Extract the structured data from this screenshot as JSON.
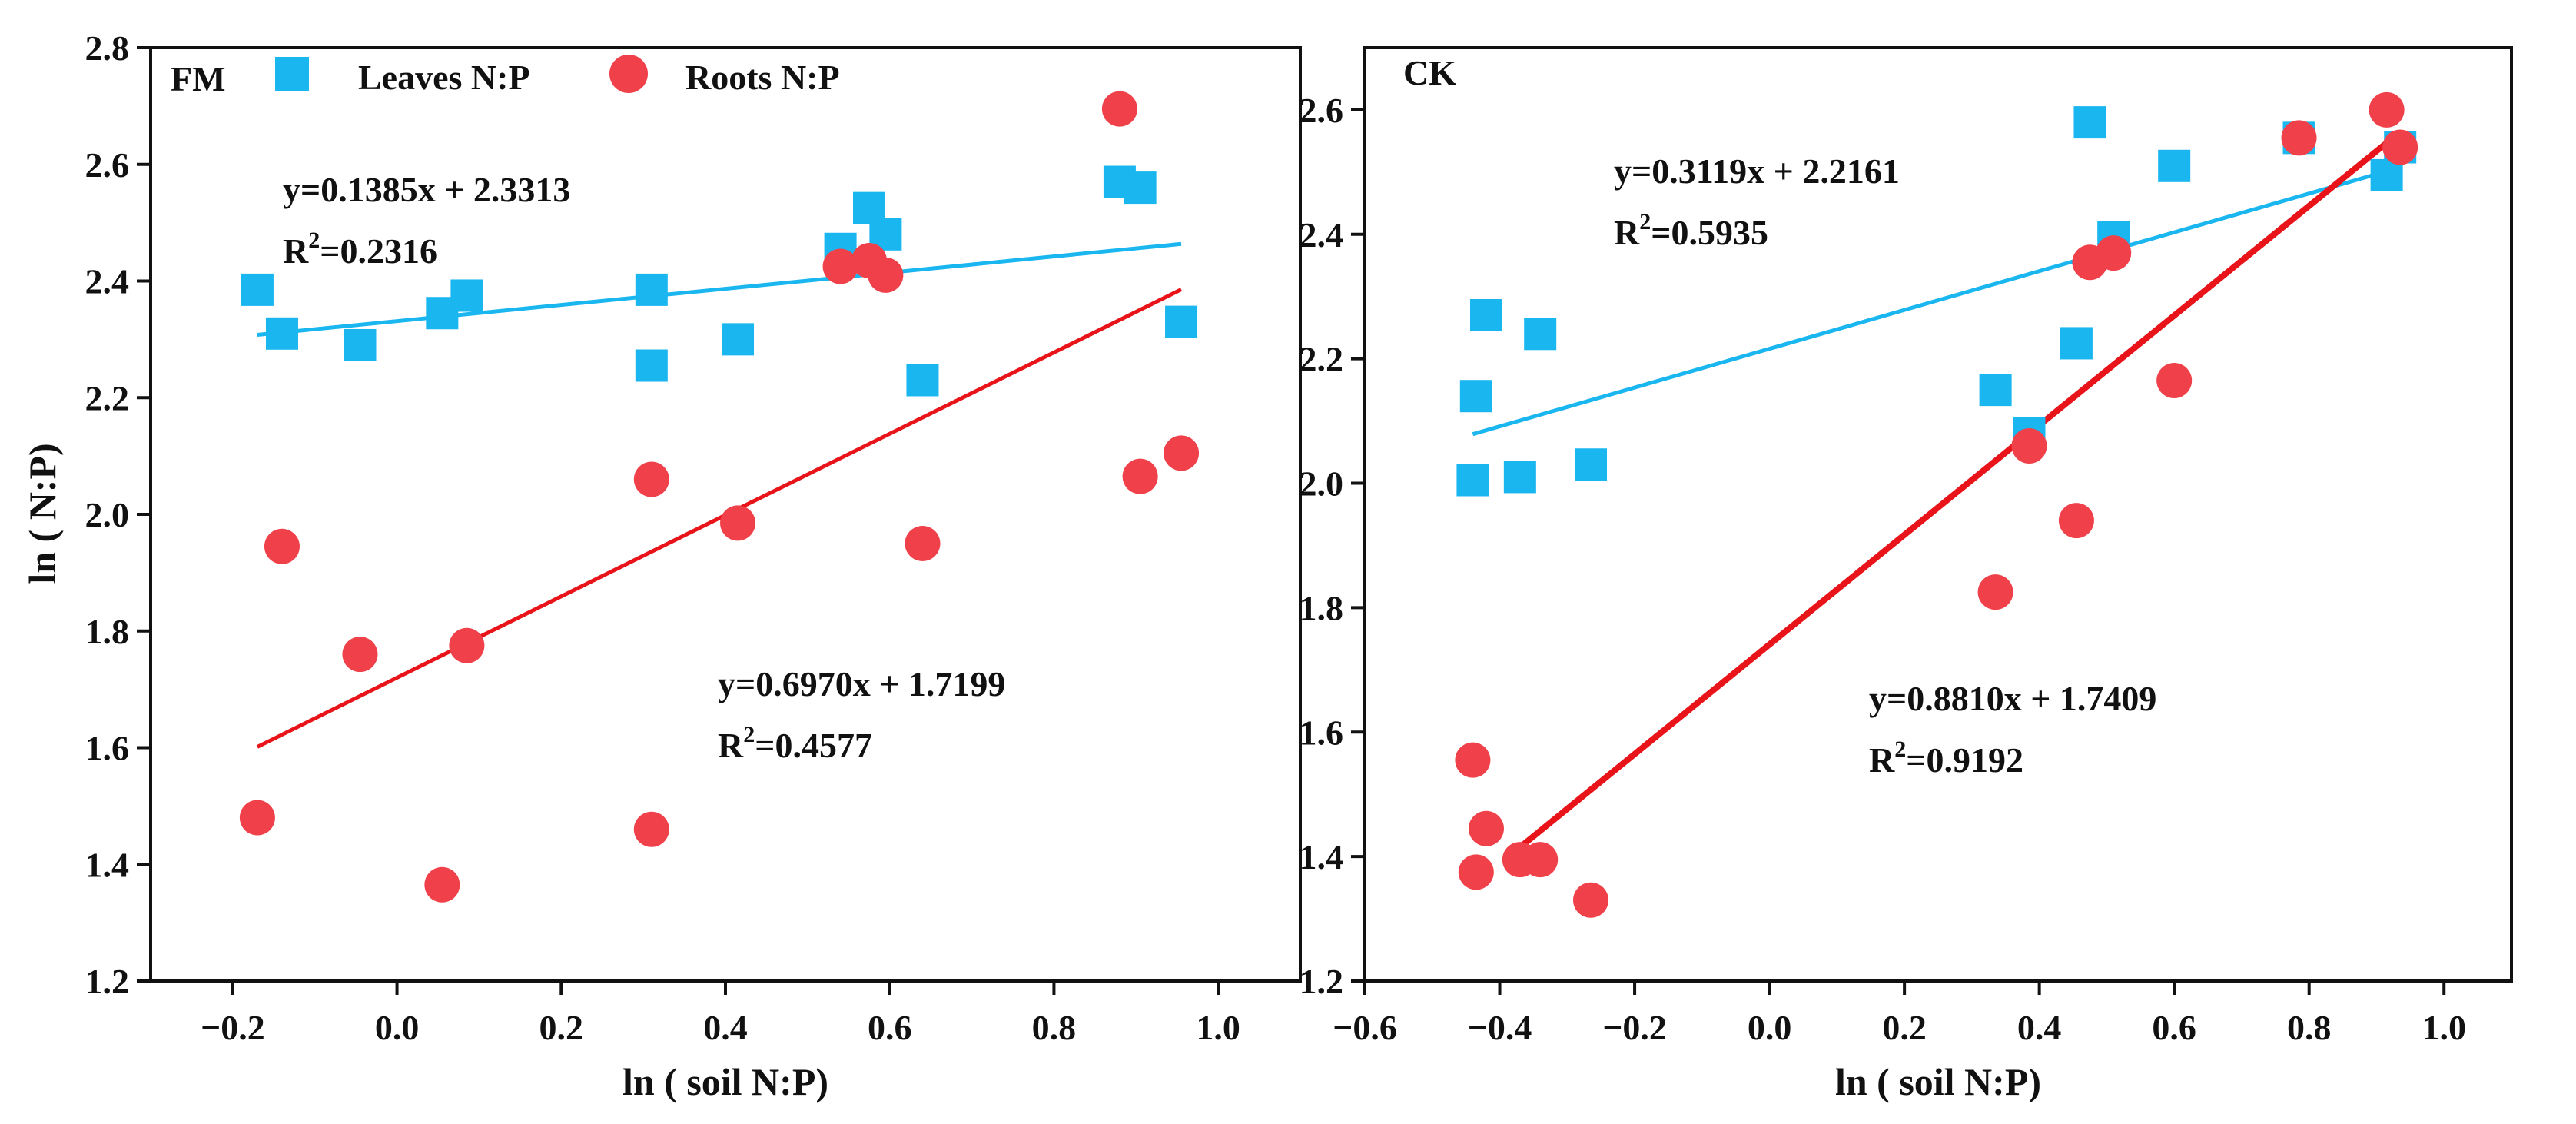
{
  "colors": {
    "leaves": "#19b6ef",
    "roots": "#f0414a",
    "roots_line": "#e8141a",
    "axis": "#111111"
  },
  "legend": {
    "leaves": "Leaves N:P",
    "roots": "Roots N:P"
  },
  "y_axis_title": "ln ( N:P)",
  "x_axis_title": "ln ( soil N:P)",
  "chart_data": [
    {
      "type": "scatter",
      "panel": "FM",
      "xlim": [
        -0.3,
        1.1
      ],
      "ylim": [
        1.2,
        2.8
      ],
      "xticks": [
        "−0.2",
        "0.0",
        "0.2",
        "0.4",
        "0.6",
        "0.8",
        "1.0"
      ],
      "xtick_values": [
        -0.2,
        0.0,
        0.2,
        0.4,
        0.6,
        0.8,
        1.0
      ],
      "yticks": [
        "1.2",
        "1.4",
        "1.6",
        "1.8",
        "2.0",
        "2.2",
        "2.4",
        "2.6",
        "2.8"
      ],
      "ytick_values": [
        1.2,
        1.4,
        1.6,
        1.8,
        2.0,
        2.2,
        2.4,
        2.6,
        2.8
      ],
      "xlabel": "ln ( soil N:P)",
      "ylabel": "ln ( N:P)",
      "grid": false,
      "legend_position": "top",
      "series": [
        {
          "name": "Leaves N:P",
          "marker": "square",
          "points": [
            [
              -0.17,
              2.385
            ],
            [
              -0.14,
              2.31
            ],
            [
              -0.045,
              2.29
            ],
            [
              0.055,
              2.345
            ],
            [
              0.085,
              2.375
            ],
            [
              0.31,
              2.385
            ],
            [
              0.31,
              2.255
            ],
            [
              0.415,
              2.3
            ],
            [
              0.54,
              2.455
            ],
            [
              0.575,
              2.525
            ],
            [
              0.595,
              2.48
            ],
            [
              0.64,
              2.23
            ],
            [
              0.88,
              2.57
            ],
            [
              0.905,
              2.56
            ],
            [
              0.955,
              2.33
            ]
          ],
          "fit": {
            "slope": 0.1385,
            "intercept": 2.3313,
            "x_range": [
              -0.17,
              0.955
            ]
          },
          "equation": "y=0.1385x + 2.3313",
          "r2_label": "R",
          "r2_value": "=0.2316"
        },
        {
          "name": "Roots N:P",
          "marker": "circle",
          "points": [
            [
              -0.17,
              1.48
            ],
            [
              -0.14,
              1.945
            ],
            [
              -0.045,
              1.76
            ],
            [
              0.055,
              1.365
            ],
            [
              0.085,
              1.775
            ],
            [
              0.31,
              2.06
            ],
            [
              0.31,
              1.46
            ],
            [
              0.415,
              1.985
            ],
            [
              0.54,
              2.425
            ],
            [
              0.575,
              2.435
            ],
            [
              0.595,
              2.41
            ],
            [
              0.64,
              1.95
            ],
            [
              0.88,
              2.695
            ],
            [
              0.905,
              2.065
            ],
            [
              0.955,
              2.105
            ]
          ],
          "fit": {
            "slope": 0.697,
            "intercept": 1.7199,
            "x_range": [
              -0.17,
              0.955
            ]
          },
          "equation": "y=0.6970x + 1.7199",
          "r2_label": "R",
          "r2_value": "=0.4577"
        }
      ]
    },
    {
      "type": "scatter",
      "panel": "CK",
      "xlim": [
        -0.6,
        1.1
      ],
      "ylim": [
        1.2,
        2.7
      ],
      "xticks": [
        "−0.6",
        "−0.4",
        "−0.2",
        "0.0",
        "0.2",
        "0.4",
        "0.6",
        "0.8",
        "1.0"
      ],
      "xtick_values": [
        -0.6,
        -0.4,
        -0.2,
        0.0,
        0.2,
        0.4,
        0.6,
        0.8,
        1.0
      ],
      "yticks": [
        "1.2",
        "1.4",
        "1.6",
        "1.8",
        "2.0",
        "2.2",
        "2.4",
        "2.6"
      ],
      "ytick_values": [
        1.2,
        1.4,
        1.6,
        1.8,
        2.0,
        2.2,
        2.4,
        2.6
      ],
      "xlabel": "ln ( soil N:P)",
      "grid": false,
      "series": [
        {
          "name": "Leaves N:P",
          "marker": "square",
          "points": [
            [
              -0.44,
              2.005
            ],
            [
              -0.435,
              2.14
            ],
            [
              -0.42,
              2.27
            ],
            [
              -0.37,
              2.01
            ],
            [
              -0.34,
              2.24
            ],
            [
              -0.265,
              2.03
            ],
            [
              0.335,
              2.15
            ],
            [
              0.385,
              2.08
            ],
            [
              0.455,
              2.225
            ],
            [
              0.475,
              2.58
            ],
            [
              0.51,
              2.395
            ],
            [
              0.6,
              2.51
            ],
            [
              0.785,
              2.555
            ],
            [
              0.915,
              2.495
            ],
            [
              0.935,
              2.54
            ]
          ],
          "fit": {
            "slope": 0.3119,
            "intercept": 2.2161,
            "x_range": [
              -0.44,
              0.935
            ]
          },
          "equation": "y=0.3119x + 2.2161",
          "r2_label": "R",
          "r2_value": "=0.5935"
        },
        {
          "name": "Roots N:P",
          "marker": "circle",
          "points": [
            [
              -0.44,
              1.555
            ],
            [
              -0.435,
              1.375
            ],
            [
              -0.42,
              1.445
            ],
            [
              -0.37,
              1.395
            ],
            [
              -0.34,
              1.395
            ],
            [
              -0.265,
              1.33
            ],
            [
              0.335,
              1.825
            ],
            [
              0.385,
              2.06
            ],
            [
              0.455,
              1.94
            ],
            [
              0.475,
              2.355
            ],
            [
              0.51,
              2.37
            ],
            [
              0.6,
              2.165
            ],
            [
              0.785,
              2.555
            ],
            [
              0.915,
              2.6
            ],
            [
              0.935,
              2.54
            ]
          ],
          "fit": {
            "slope": 0.881,
            "intercept": 1.7409,
            "x_range": [
              -0.38,
              0.935
            ]
          },
          "equation": "y=0.8810x + 1.7409",
          "r2_label": "R",
          "r2_value": "=0.9192"
        }
      ]
    }
  ]
}
